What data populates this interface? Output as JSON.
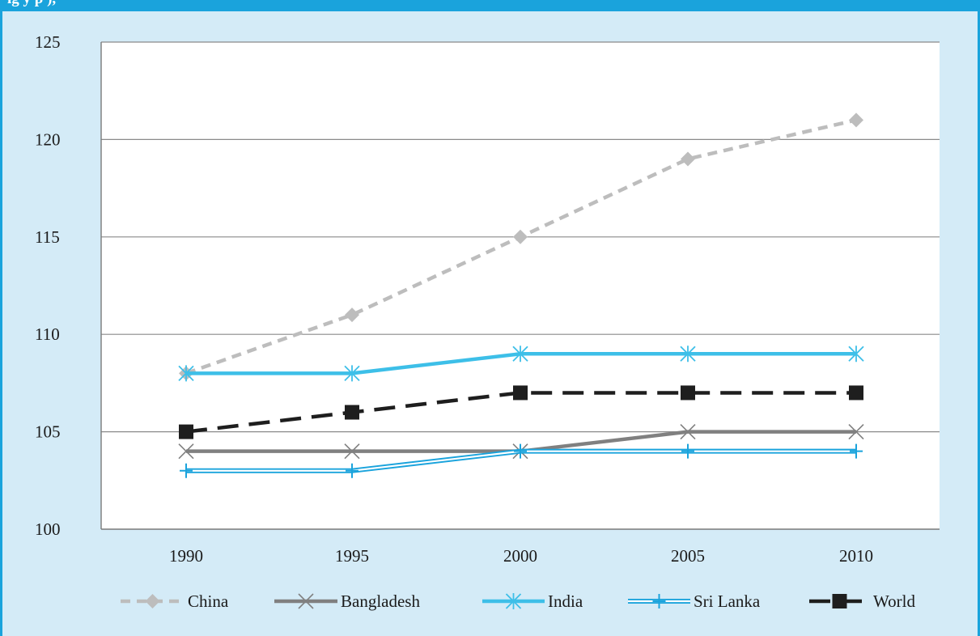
{
  "header": {
    "title_fragment": "ig                    y  p              ),"
  },
  "colors": {
    "accent": "#1aa3dc",
    "background": "#d4ebf7",
    "china": "#bdbdbd",
    "bangladesh": "#808080",
    "india": "#3dbfe8",
    "sri_lanka": "#1aa3dc",
    "world": "#1e1e1e"
  },
  "chart_data": {
    "type": "line",
    "title": "",
    "xlabel": "",
    "ylabel": "",
    "x": [
      "1990",
      "1995",
      "2000",
      "2005",
      "2010"
    ],
    "ylim": [
      100,
      125
    ],
    "yticks": [
      "100",
      "105",
      "110",
      "115",
      "120",
      "125"
    ],
    "grid": true,
    "legend_position": "bottom",
    "series": [
      {
        "name": "China",
        "values": [
          108,
          111,
          115,
          119,
          121
        ],
        "marker": "diamond",
        "style": "dashed",
        "color": "#bdbdbd"
      },
      {
        "name": "Bangladesh",
        "values": [
          104,
          104,
          104,
          105,
          105
        ],
        "marker": "x",
        "style": "solid",
        "color": "#808080"
      },
      {
        "name": "India",
        "values": [
          108,
          108,
          109,
          109,
          109
        ],
        "marker": "asterisk",
        "style": "solid",
        "color": "#3dbfe8"
      },
      {
        "name": "Sri Lanka",
        "values": [
          103,
          103,
          104,
          104,
          104
        ],
        "marker": "plus",
        "style": "double",
        "color": "#1aa3dc"
      },
      {
        "name": "World",
        "values": [
          105,
          106,
          107,
          107,
          107
        ],
        "marker": "square",
        "style": "longdash",
        "color": "#1e1e1e"
      }
    ]
  }
}
